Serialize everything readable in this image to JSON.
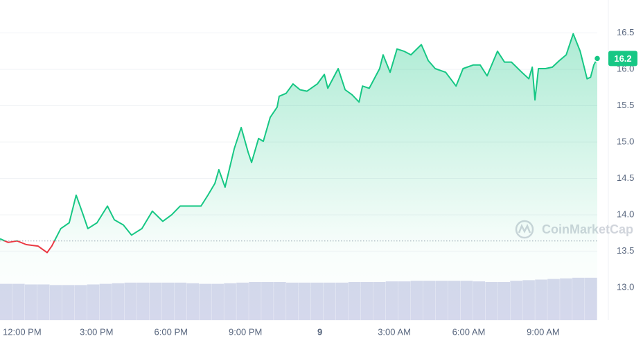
{
  "chart_data": {
    "type": "line",
    "x": [
      -0.89,
      -0.56,
      -0.2,
      0.17,
      0.64,
      1.01,
      1.2,
      1.56,
      1.9,
      2.18,
      2.46,
      2.65,
      3.02,
      3.44,
      3.72,
      4.08,
      4.41,
      4.83,
      5.25,
      5.67,
      6.03,
      6.37,
      6.79,
      7.21,
      7.49,
      7.77,
      7.93,
      8.18,
      8.55,
      8.83,
      9.11,
      9.25,
      9.53,
      9.72,
      10.0,
      10.28,
      10.36,
      10.64,
      10.92,
      11.2,
      11.48,
      11.9,
      12.18,
      12.32,
      12.74,
      13.02,
      13.3,
      13.58,
      13.72,
      13.99,
      14.41,
      14.55,
      14.83,
      15.11,
      15.39,
      15.67,
      16.09,
      16.37,
      16.65,
      17.07,
      17.49,
      17.77,
      18.18,
      18.46,
      18.74,
      19.16,
      19.44,
      19.72,
      20.14,
      20.42,
      20.56,
      20.67,
      20.81,
      21.09,
      21.37,
      21.65,
      21.93,
      22.21,
      22.49,
      22.77,
      22.91,
      23.04,
      23.18
    ],
    "series": [
      {
        "color": "#16c784",
        "below_color": "#ea3943",
        "values": [
          13.67,
          13.62,
          13.64,
          13.59,
          13.57,
          13.48,
          13.57,
          13.81,
          13.89,
          14.27,
          14.0,
          13.81,
          13.89,
          14.12,
          13.93,
          13.86,
          13.72,
          13.81,
          14.05,
          13.91,
          14.0,
          14.12,
          14.12,
          14.12,
          14.27,
          14.43,
          14.62,
          14.38,
          14.91,
          15.2,
          14.86,
          14.72,
          15.05,
          15.01,
          15.34,
          15.48,
          15.63,
          15.67,
          15.8,
          15.72,
          15.7,
          15.8,
          15.93,
          15.74,
          16.01,
          15.72,
          15.65,
          15.55,
          15.77,
          15.74,
          16.01,
          16.2,
          15.96,
          16.28,
          16.25,
          16.2,
          16.34,
          16.12,
          16.01,
          15.96,
          15.77,
          16.01,
          16.06,
          16.06,
          15.91,
          16.25,
          16.1,
          16.1,
          15.96,
          15.87,
          16.03,
          15.58,
          16.01,
          16.01,
          16.03,
          16.12,
          16.2,
          16.49,
          16.25,
          15.87,
          15.89,
          16.06,
          16.15
        ]
      }
    ],
    "baseline": 13.64,
    "last_price": {
      "value": 16.15,
      "label": "16.2"
    },
    "xlim": [
      -0.89,
      23.18
    ],
    "xticks": [
      {
        "value": 0,
        "label": "12:00 PM"
      },
      {
        "value": 3,
        "label": "3:00 PM"
      },
      {
        "value": 6,
        "label": "6:00 PM"
      },
      {
        "value": 9,
        "label": "9:00 PM"
      },
      {
        "value": 12,
        "label": "9"
      },
      {
        "value": 15,
        "label": "3:00 AM"
      },
      {
        "value": 18,
        "label": "6:00 AM"
      },
      {
        "value": 21,
        "label": "9:00 AM"
      }
    ],
    "ylim": [
      12.55,
      16.95
    ],
    "yticks": [
      {
        "value": 13,
        "label": "13.0"
      },
      13.5,
      {
        "value": 14,
        "label": "14.0"
      },
      14.5,
      {
        "value": 15,
        "label": "15.0"
      },
      15.5,
      {
        "value": 16,
        "label": "16.0"
      },
      16.5
    ],
    "grid": true,
    "volume": {
      "color": "#d5d8ec",
      "ylim": [
        0,
        80
      ],
      "values": [
        60,
        60,
        59,
        59,
        58,
        58,
        58,
        59,
        60,
        61,
        62,
        62,
        62,
        62,
        62,
        61,
        60,
        60,
        61,
        62,
        63,
        63,
        63,
        62,
        62,
        62,
        62,
        62,
        63,
        63,
        63,
        64,
        64,
        65,
        65,
        65,
        65,
        65,
        64,
        63,
        63,
        65,
        66,
        67,
        68,
        69,
        70,
        70
      ]
    },
    "watermark": "CoinMarketCap"
  }
}
